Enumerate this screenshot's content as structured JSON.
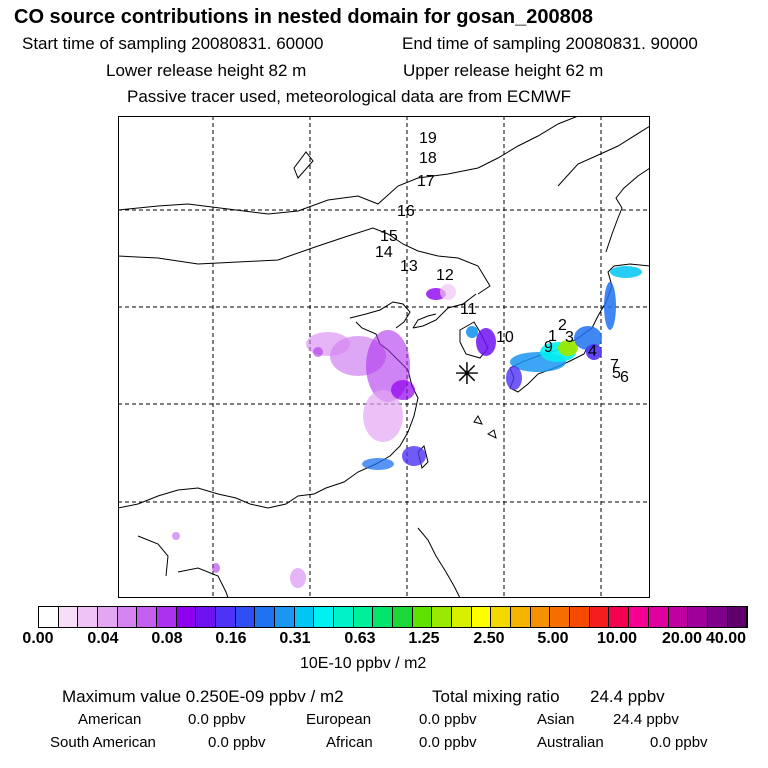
{
  "header": {
    "title": "CO  source contributions in nested domain for gosan_200808",
    "start": "Start time of sampling 20080831. 60000",
    "end": "End time of sampling 20080831. 90000",
    "lower": "Lower release height   82 m",
    "upper": "Upper release height   62 m",
    "note": "Passive tracer used, meteorological data are from ECMWF"
  },
  "map": {
    "receptor_symbol": "✳",
    "trajectory_labels": [
      "19",
      "18",
      "17",
      "16",
      "15",
      "14",
      "13",
      "12",
      "11",
      "10",
      "9",
      "1",
      "2",
      "3",
      "4",
      "5",
      "6",
      "7"
    ]
  },
  "colorbar": {
    "colors": [
      "#ffffff",
      "#f6ddf8",
      "#efc4f5",
      "#e3a6f3",
      "#d583f1",
      "#c35eef",
      "#ad32ef",
      "#8e00f0",
      "#6f12f2",
      "#4e32f5",
      "#2f4ff4",
      "#1f72f2",
      "#1a96f3",
      "#00c6f4",
      "#00f2f0",
      "#00f3c8",
      "#00f09a",
      "#00e56a",
      "#19d837",
      "#5ee300",
      "#9be800",
      "#d8f000",
      "#ffff00",
      "#f5d800",
      "#f5b400",
      "#f59000",
      "#f56e00",
      "#f54a00",
      "#f51e1e",
      "#f50050",
      "#f50090",
      "#e000a0",
      "#c000a0",
      "#a0009a",
      "#7f008a",
      "#60006c"
    ],
    "ticks": [
      "0.00",
      "0.04",
      "0.08",
      "0.16",
      "0.31",
      "0.63",
      "1.25",
      "2.50",
      "5.00",
      "10.00",
      "20.00",
      "40.00"
    ],
    "unit": "10E-10 ppbv / m2"
  },
  "summary": {
    "max_label": "Maximum value  0.250E-09 ppbv / m2",
    "total_label": "Total mixing ratio",
    "total_value": "24.4 ppbv"
  },
  "regions": [
    {
      "name": "American",
      "value": "0.0 ppbv"
    },
    {
      "name": "European",
      "value": "0.0 ppbv"
    },
    {
      "name": "Asian",
      "value": "24.4 ppbv"
    },
    {
      "name": "South American",
      "value": "0.0 ppbv"
    },
    {
      "name": "African",
      "value": "0.0 ppbv"
    },
    {
      "name": "Australian",
      "value": "0.0 ppbv"
    }
  ]
}
